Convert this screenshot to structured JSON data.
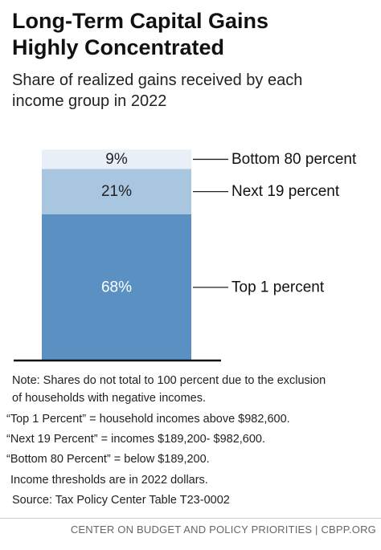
{
  "title_line1": "Long-Term Capital Gains",
  "title_line2": "Highly Concentrated",
  "subtitle_line1": "Share of realized gains received by each",
  "subtitle_line2": "income group in 2022",
  "chart_data": {
    "type": "bar",
    "stacked": true,
    "categories": [
      "2022"
    ],
    "series": [
      {
        "name": "Top 1 percent",
        "values": [
          68
        ],
        "label": "68%",
        "color": "#5b91c2",
        "label_color": "#ffffff"
      },
      {
        "name": "Next 19 percent",
        "values": [
          21
        ],
        "label": "21%",
        "color": "#a8c6e0",
        "label_color": "#222222"
      },
      {
        "name": "Bottom 80 percent",
        "values": [
          9
        ],
        "label": "9%",
        "color": "#e8eff7",
        "label_color": "#222222"
      }
    ],
    "ylim": [
      0,
      100
    ],
    "grid": false,
    "legend": "right"
  },
  "notes": {
    "note_line1": "Note: Shares do not total to 100 percent due to the exclusion",
    "note_line2": "of households with negative incomes.",
    "top1_def": "“Top 1 Percent” = household incomes above $982,600.",
    "next19_def": "“Next 19 Percent” = incomes $189,200- $982,600.",
    "bottom80_def": "“Bottom 80 Percent” =  below $189,200.",
    "dollars": "Income thresholds are in 2022 dollars.",
    "source": "Source: Tax Policy Center Table T23-0002"
  },
  "footer": "CENTER ON BUDGET AND POLICY PRIORITIES | CBPP.ORG"
}
